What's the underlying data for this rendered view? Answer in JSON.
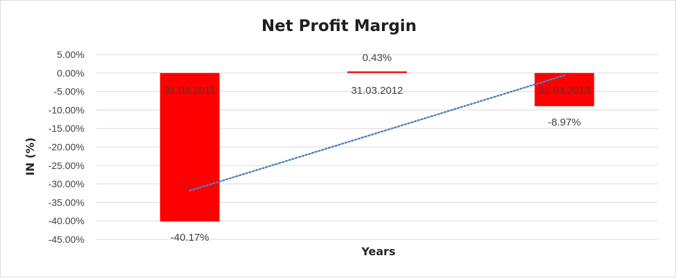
{
  "chart_data": {
    "type": "bar",
    "title": "Net Profit Margin",
    "xlabel": "Years",
    "ylabel": "IN (%)",
    "categories": [
      "31.03.2011",
      "31.03.2012",
      "31.03.2013"
    ],
    "values": [
      -40.17,
      0.43,
      -8.97
    ],
    "data_labels": [
      "-40.17%",
      "0.43%",
      "-8.97%"
    ],
    "y_ticks": [
      "5.00%",
      "0.00%",
      "-5.00%",
      "-10.00%",
      "-15.00%",
      "-20.00%",
      "-25.00%",
      "-30.00%",
      "-35.00%",
      "-40.00%",
      "-45.00%"
    ],
    "ylim": [
      -45,
      5
    ],
    "grid": true,
    "trendline": "linear",
    "colors": {
      "bar": "#ff0000",
      "trendline": "#4f81bd",
      "grid": "#d9d9d9"
    }
  }
}
